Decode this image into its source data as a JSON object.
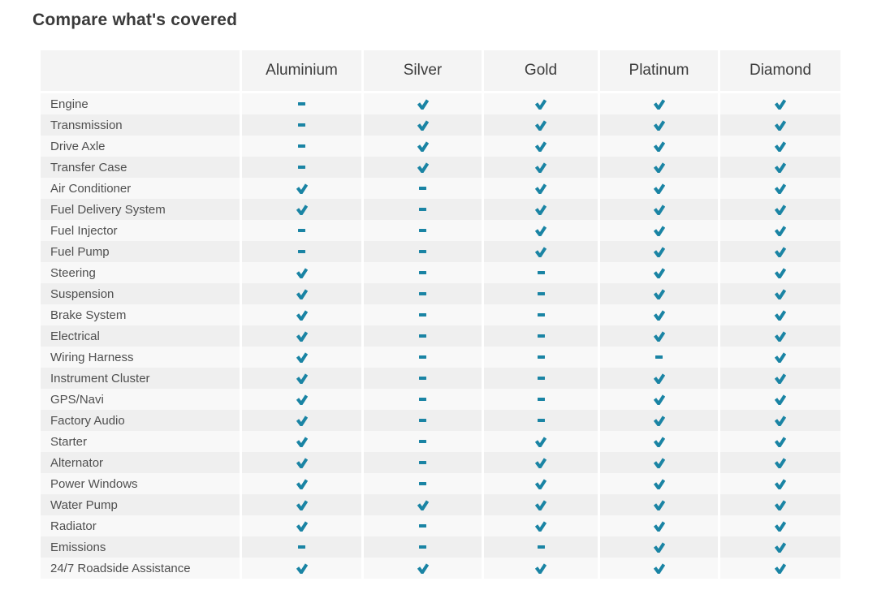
{
  "page": {
    "title": "Compare what's covered"
  },
  "table": {
    "columns": [
      "Aluminium",
      "Silver",
      "Gold",
      "Platinum",
      "Diamond"
    ],
    "rows": [
      {
        "label": "Engine",
        "cells": [
          "dash",
          "check",
          "check",
          "check",
          "check"
        ]
      },
      {
        "label": "Transmission",
        "cells": [
          "dash",
          "check",
          "check",
          "check",
          "check"
        ]
      },
      {
        "label": "Drive Axle",
        "cells": [
          "dash",
          "check",
          "check",
          "check",
          "check"
        ]
      },
      {
        "label": "Transfer Case",
        "cells": [
          "dash",
          "check",
          "check",
          "check",
          "check"
        ]
      },
      {
        "label": "Air Conditioner",
        "cells": [
          "check",
          "dash",
          "check",
          "check",
          "check"
        ]
      },
      {
        "label": "Fuel Delivery System",
        "cells": [
          "check",
          "dash",
          "check",
          "check",
          "check"
        ]
      },
      {
        "label": "Fuel Injector",
        "cells": [
          "dash",
          "dash",
          "check",
          "check",
          "check"
        ]
      },
      {
        "label": "Fuel Pump",
        "cells": [
          "dash",
          "dash",
          "check",
          "check",
          "check"
        ]
      },
      {
        "label": "Steering",
        "cells": [
          "check",
          "dash",
          "dash",
          "check",
          "check"
        ]
      },
      {
        "label": "Suspension",
        "cells": [
          "check",
          "dash",
          "dash",
          "check",
          "check"
        ]
      },
      {
        "label": "Brake System",
        "cells": [
          "check",
          "dash",
          "dash",
          "check",
          "check"
        ]
      },
      {
        "label": "Electrical",
        "cells": [
          "check",
          "dash",
          "dash",
          "check",
          "check"
        ]
      },
      {
        "label": "Wiring Harness",
        "cells": [
          "check",
          "dash",
          "dash",
          "dash",
          "check"
        ]
      },
      {
        "label": "Instrument Cluster",
        "cells": [
          "check",
          "dash",
          "dash",
          "check",
          "check"
        ]
      },
      {
        "label": "GPS/Navi",
        "cells": [
          "check",
          "dash",
          "dash",
          "check",
          "check"
        ]
      },
      {
        "label": "Factory Audio",
        "cells": [
          "check",
          "dash",
          "dash",
          "check",
          "check"
        ]
      },
      {
        "label": "Starter",
        "cells": [
          "check",
          "dash",
          "check",
          "check",
          "check"
        ]
      },
      {
        "label": "Alternator",
        "cells": [
          "check",
          "dash",
          "check",
          "check",
          "check"
        ]
      },
      {
        "label": "Power Windows",
        "cells": [
          "check",
          "dash",
          "check",
          "check",
          "check"
        ]
      },
      {
        "label": "Water Pump",
        "cells": [
          "check",
          "check",
          "check",
          "check",
          "check"
        ]
      },
      {
        "label": "Radiator",
        "cells": [
          "check",
          "dash",
          "check",
          "check",
          "check"
        ]
      },
      {
        "label": "Emissions",
        "cells": [
          "dash",
          "dash",
          "dash",
          "check",
          "check"
        ]
      },
      {
        "label": "24/7 Roadside Assistance",
        "cells": [
          "check",
          "check",
          "check",
          "check",
          "check"
        ]
      }
    ],
    "icons": {
      "check": "check-icon",
      "dash": "dash-icon"
    },
    "colors": {
      "accent": "#1a84a4",
      "header_bg": "#f4f4f4",
      "row_odd": "#f8f8f8",
      "row_even": "#efefef"
    }
  }
}
